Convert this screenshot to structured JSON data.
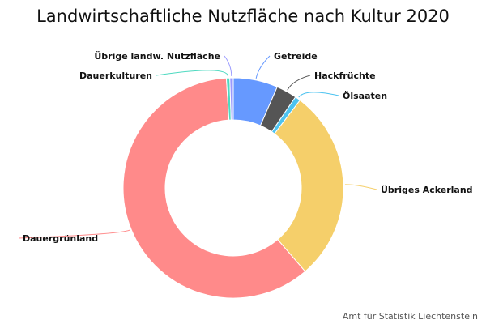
{
  "chart_data": {
    "type": "pie",
    "variant": "donut",
    "title": "Landwirtschaftliche Nutzfläche nach Kultur 2020",
    "slices": [
      {
        "label": "Getreide",
        "value": 6.5,
        "color": "#6699ff"
      },
      {
        "label": "Hackfrüchte",
        "value": 3.0,
        "color": "#555555"
      },
      {
        "label": "Ölsaaten",
        "value": 0.8,
        "color": "#4dc3f0"
      },
      {
        "label": "Übriges Ackerland",
        "value": 28.2,
        "color": "#f5cf6a"
      },
      {
        "label": "Dauergrünland",
        "value": 60.0,
        "color": "#ff8a8a"
      },
      {
        "label": "Dauerkulturen",
        "value": 0.5,
        "color": "#4dd9c0"
      },
      {
        "label": "Übrige landw. Nutzfläche",
        "value": 0.5,
        "color": "#9999ff"
      }
    ]
  },
  "credit": "Amt für Statistik Liechtenstein"
}
